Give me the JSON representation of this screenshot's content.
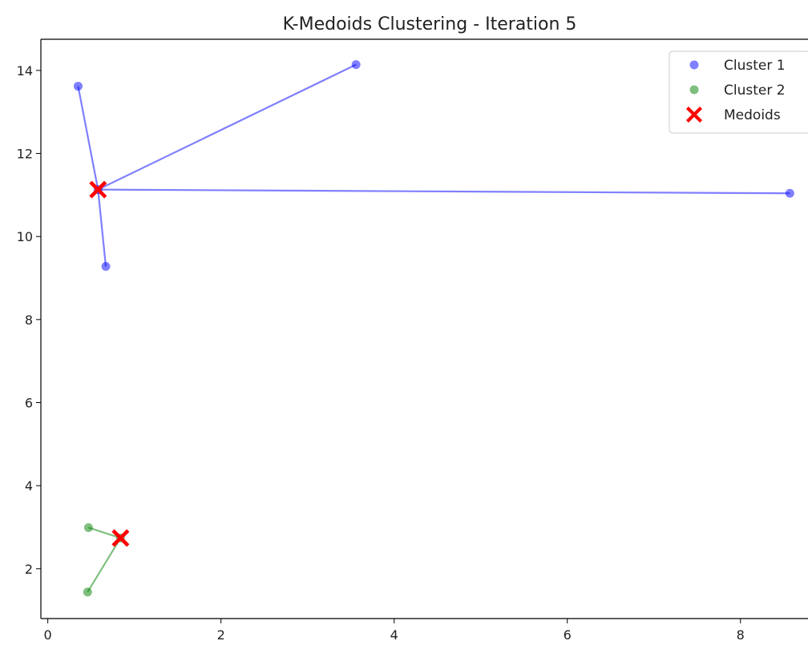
{
  "chart_data": {
    "type": "scatter",
    "title": "K-Medoids Clustering - Iteration 5",
    "xlabel": "",
    "ylabel": "",
    "xlim": [
      -0.08,
      8.78
    ],
    "ylim": [
      0.8,
      14.75
    ],
    "xticks": [
      0,
      2,
      4,
      6,
      8
    ],
    "yticks": [
      2,
      4,
      6,
      8,
      10,
      12,
      14
    ],
    "grid": false,
    "legend_position": "top-right",
    "series": [
      {
        "name": "Cluster 1",
        "color": "#0000ff",
        "points": [
          {
            "x": 0.35,
            "y": 13.62
          },
          {
            "x": 3.56,
            "y": 14.14
          },
          {
            "x": 8.57,
            "y": 11.04
          },
          {
            "x": 0.67,
            "y": 9.28
          },
          {
            "x": 0.58,
            "y": 11.13
          }
        ]
      },
      {
        "name": "Cluster 2",
        "color": "#008000",
        "points": [
          {
            "x": 0.47,
            "y": 2.99
          },
          {
            "x": 0.46,
            "y": 1.44
          },
          {
            "x": 0.84,
            "y": 2.74
          }
        ]
      }
    ],
    "medoids": {
      "name": "Medoids",
      "color": "#ff0000",
      "points": [
        {
          "x": 0.58,
          "y": 11.13,
          "cluster": 1
        },
        {
          "x": 0.84,
          "y": 2.74,
          "cluster": 2
        }
      ]
    }
  }
}
